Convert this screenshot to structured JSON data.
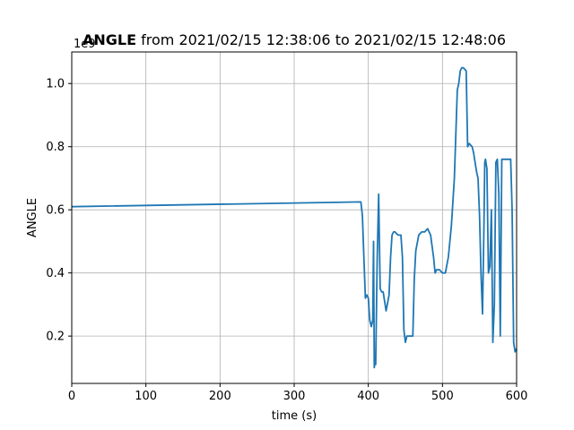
{
  "chart_data": {
    "type": "line",
    "title_bold": "ANGLE",
    "title_rest": " from 2021/02/15 12:38:06 to 2021/02/15 12:48:06",
    "xlabel": "time (s)",
    "ylabel": "ANGLE",
    "offset_label": "1e9",
    "xlim": [
      0,
      600
    ],
    "ylim": [
      0.05,
      1.1
    ],
    "xticks": [
      0,
      100,
      200,
      300,
      400,
      500,
      600
    ],
    "yticks": [
      0.2,
      0.4,
      0.6,
      0.8,
      1.0
    ],
    "xtick_labels": [
      "0",
      "100",
      "200",
      "300",
      "400",
      "500",
      "600"
    ],
    "ytick_labels": [
      "0.2",
      "0.4",
      "0.6",
      "0.8",
      "1.0"
    ],
    "grid": true,
    "line_color": "#1f77b4",
    "series": [
      {
        "x": [
          0,
          390,
          392,
          394,
          396,
          398,
          400,
          402,
          404,
          406,
          407,
          408,
          409,
          410,
          412,
          414,
          416,
          418,
          420,
          424,
          428,
          430,
          432,
          434,
          436,
          440,
          444,
          446,
          448,
          450,
          452,
          456,
          460,
          462,
          464,
          468,
          472,
          476,
          480,
          484,
          488,
          490,
          492,
          496,
          500,
          504,
          508,
          512,
          516,
          520,
          522,
          524,
          526,
          528,
          532,
          534,
          536,
          540,
          542,
          544,
          546,
          548,
          550,
          552,
          554,
          556,
          557,
          558,
          560,
          562,
          564,
          566,
          568,
          570,
          572,
          574,
          576,
          578,
          580,
          584,
          588,
          592,
          594,
          596,
          598,
          600
        ],
        "y": [
          0.61,
          0.625,
          0.58,
          0.45,
          0.32,
          0.33,
          0.32,
          0.25,
          0.23,
          0.25,
          0.5,
          0.1,
          0.12,
          0.11,
          0.45,
          0.65,
          0.35,
          0.34,
          0.34,
          0.28,
          0.33,
          0.45,
          0.52,
          0.53,
          0.53,
          0.52,
          0.52,
          0.45,
          0.22,
          0.18,
          0.2,
          0.2,
          0.2,
          0.38,
          0.47,
          0.52,
          0.53,
          0.53,
          0.54,
          0.52,
          0.45,
          0.4,
          0.41,
          0.41,
          0.4,
          0.4,
          0.45,
          0.55,
          0.7,
          0.98,
          1.0,
          1.04,
          1.05,
          1.05,
          1.04,
          0.8,
          0.81,
          0.8,
          0.78,
          0.75,
          0.72,
          0.7,
          0.58,
          0.4,
          0.27,
          0.55,
          0.75,
          0.76,
          0.73,
          0.4,
          0.42,
          0.6,
          0.18,
          0.3,
          0.75,
          0.76,
          0.65,
          0.2,
          0.76,
          0.76,
          0.76,
          0.76,
          0.6,
          0.18,
          0.15,
          0.16
        ]
      }
    ]
  }
}
